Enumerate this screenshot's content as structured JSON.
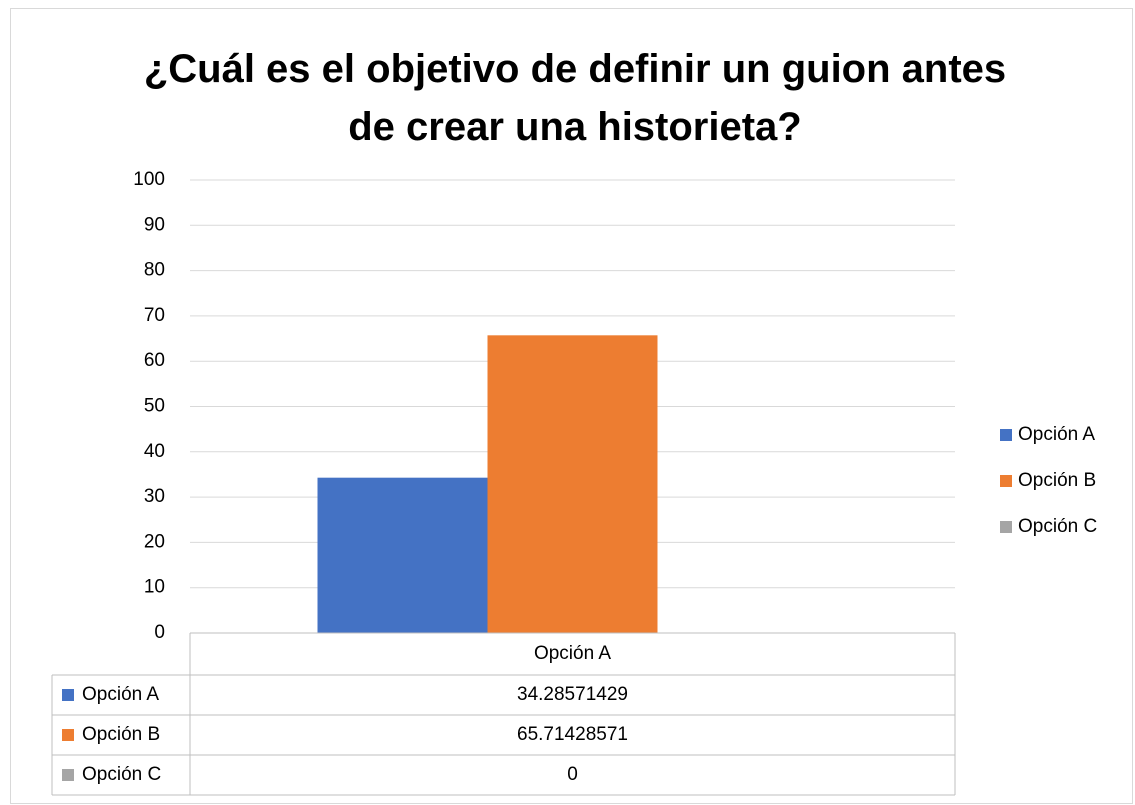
{
  "chart_data": {
    "type": "bar",
    "title": "¿Cuál es el objetivo de definir un guion antes de crear una historieta?",
    "categories": [
      "Opción A"
    ],
    "series": [
      {
        "name": "Opción A",
        "color": "#4472c4",
        "values": [
          34.28571429
        ]
      },
      {
        "name": "Opción B",
        "color": "#ed7d31",
        "values": [
          65.71428571
        ]
      },
      {
        "name": "Opción C",
        "color": "#a5a5a5",
        "values": [
          0
        ]
      }
    ],
    "ylim": [
      0,
      100
    ],
    "yticks": [
      0,
      10,
      20,
      30,
      40,
      50,
      60,
      70,
      80,
      90,
      100
    ],
    "grid": true,
    "legend": "right",
    "data_table": true
  }
}
